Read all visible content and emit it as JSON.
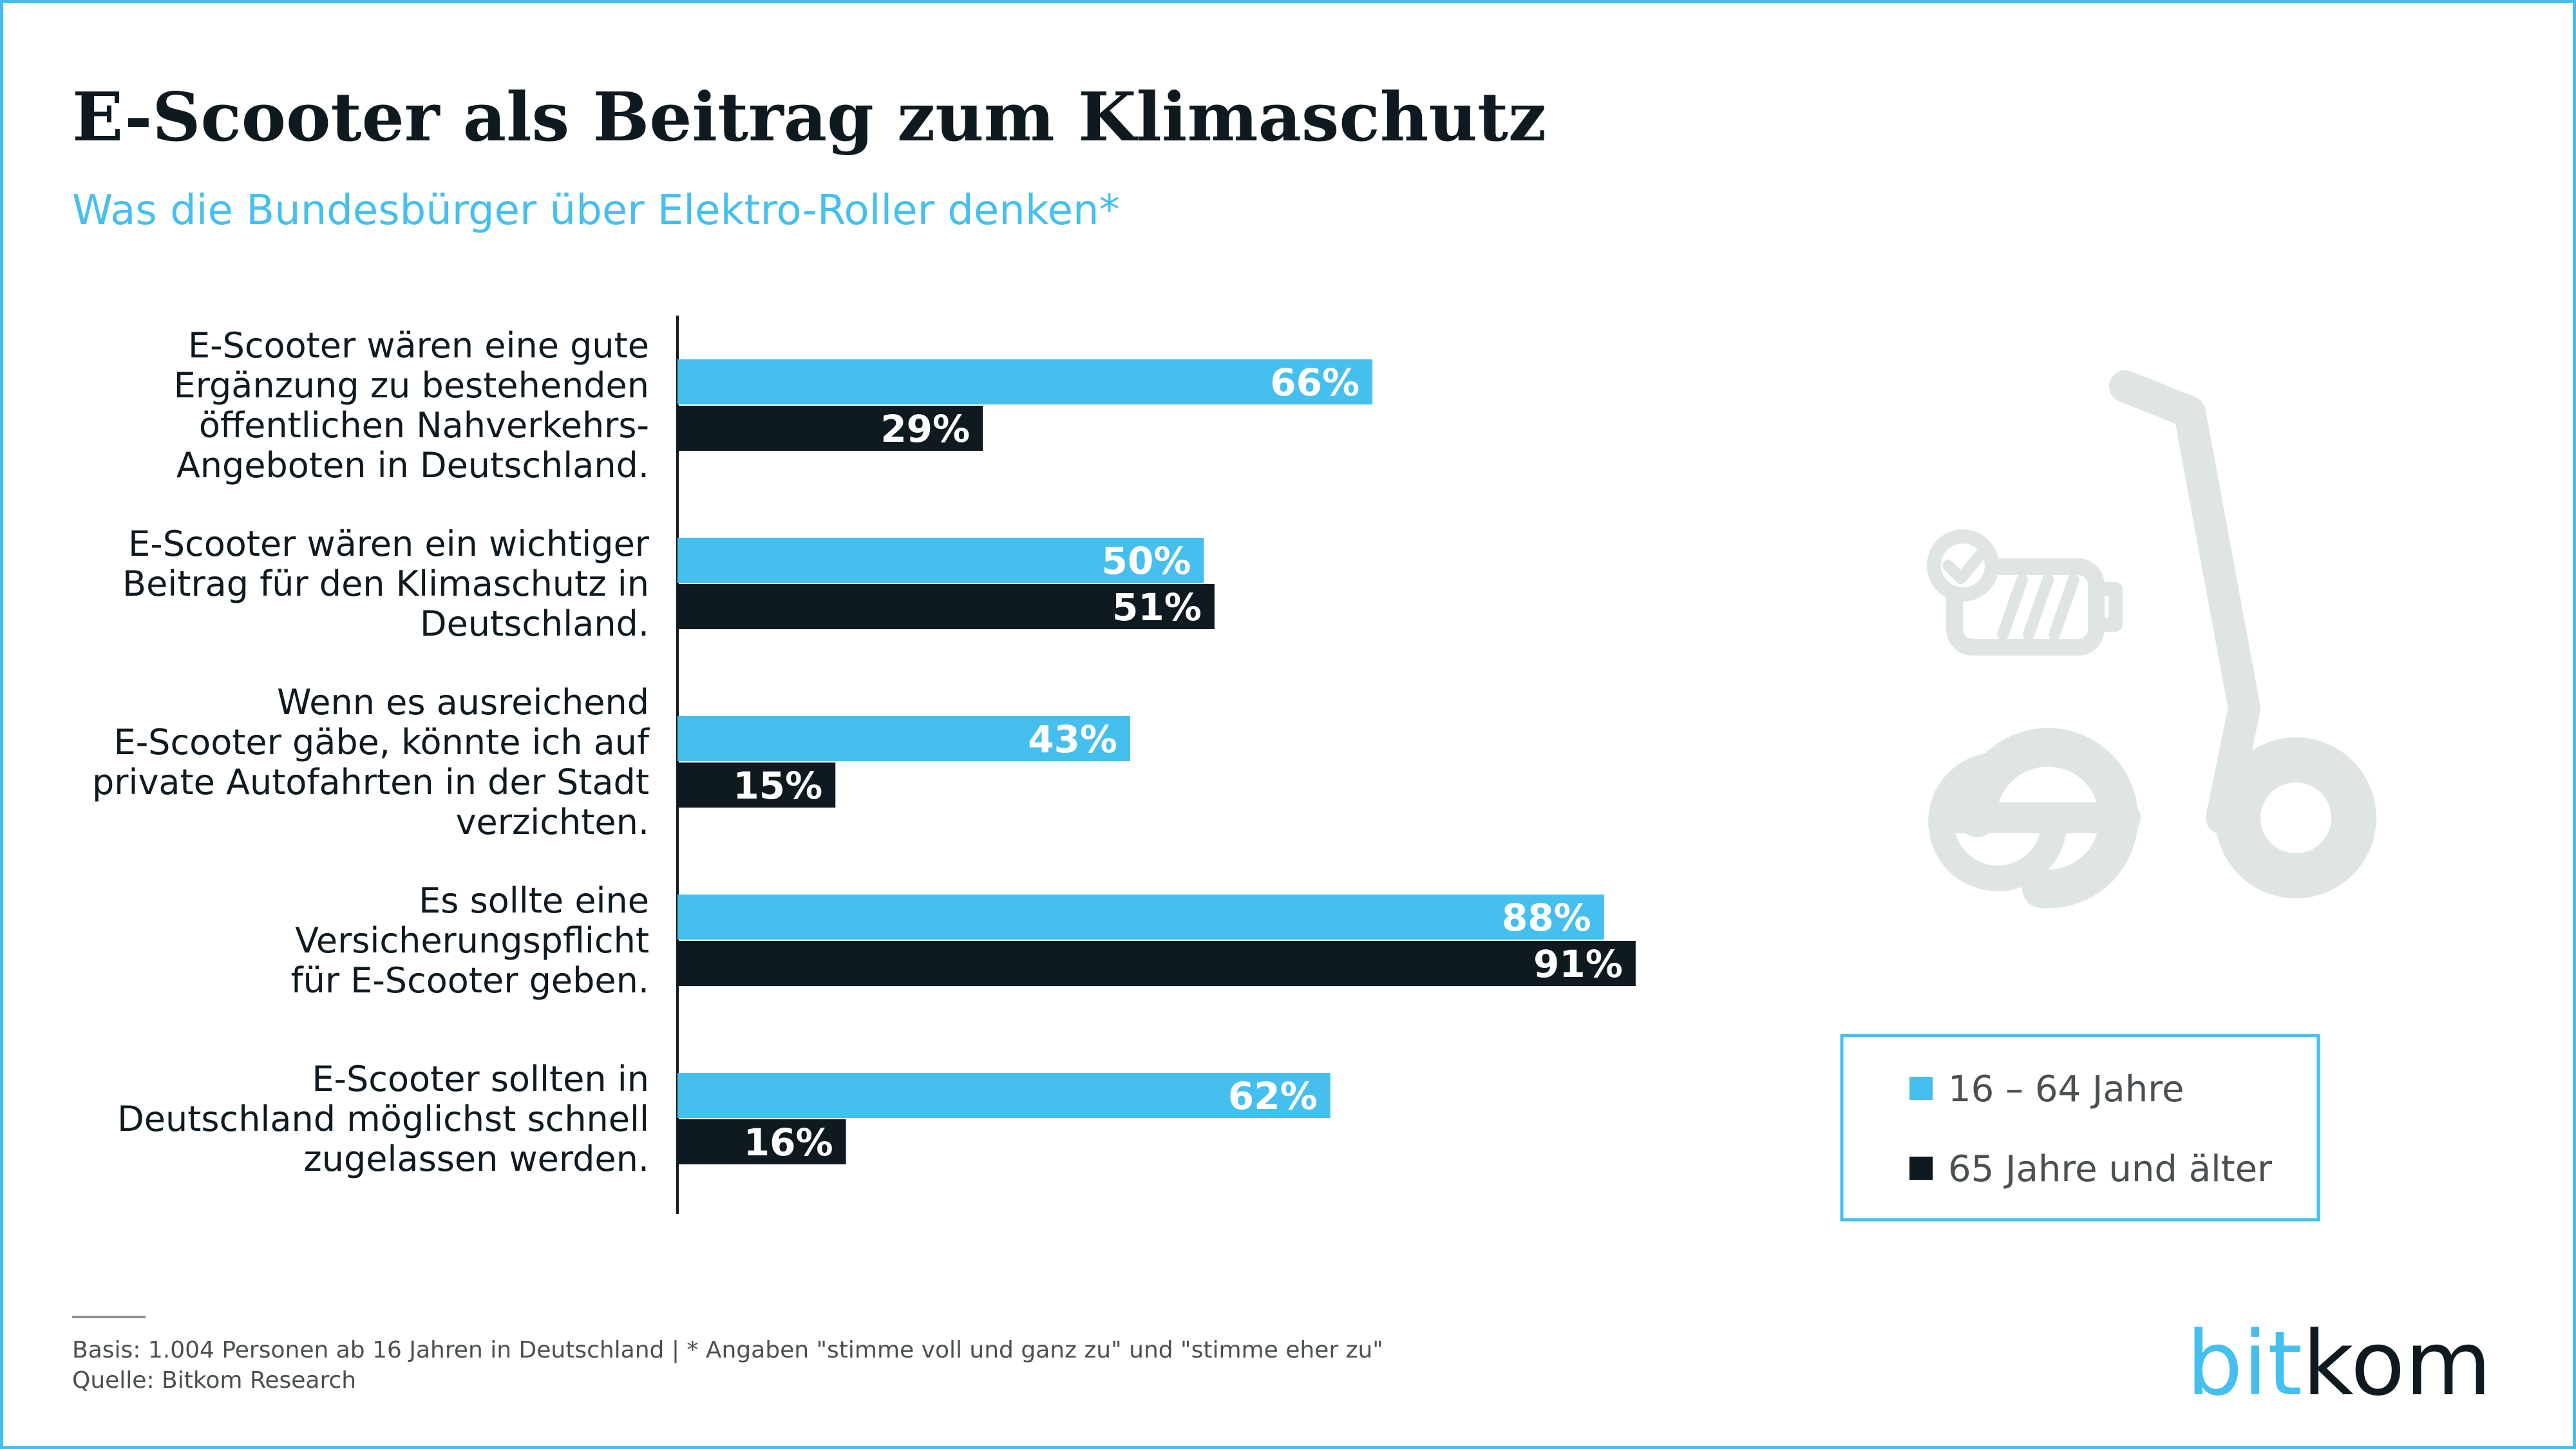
{
  "title": "E-Scooter als Beitrag zum Klimaschutz",
  "subtitle": "Was die Bundesbürger über Elektro-Roller denken*",
  "colors": {
    "series1": "#45c0ee",
    "series2": "#0e1a20",
    "axis": "#0e1a20",
    "frame": "#45c0ee",
    "illustration": "#dfe5e4"
  },
  "icons": {
    "illustration": "e-scooter-battery-icon"
  },
  "chart_data": {
    "type": "bar",
    "orientation": "horizontal",
    "categories": [
      [
        "E-Scooter wären eine gute",
        "Ergänzung zu bestehenden",
        "öffentlichen Nahverkehrs-",
        "Angeboten in Deutschland."
      ],
      [
        "E-Scooter wären ein wichtiger",
        "Beitrag für den Klimaschutz in",
        "Deutschland."
      ],
      [
        "Wenn es ausreichend",
        "E-Scooter gäbe, könnte ich auf",
        "private  Autofahrten in der Stadt",
        "verzichten."
      ],
      [
        "Es sollte eine",
        "Versicherungspflicht",
        "für E-Scooter geben."
      ],
      [
        "E-Scooter sollten in",
        "Deutschland möglichst schnell",
        "zugelassen werden."
      ]
    ],
    "series": [
      {
        "name": "16 – 64 Jahre",
        "values": [
          66,
          50,
          43,
          88,
          62
        ]
      },
      {
        "name": "65 Jahre und älter",
        "values": [
          29,
          51,
          15,
          91,
          16
        ]
      }
    ],
    "value_suffix": "%",
    "xlim": [
      0,
      100
    ],
    "grid": false,
    "legend_position": "bottom-right"
  },
  "footer": {
    "basis": "Basis: 1.004 Personen ab 16 Jahren in Deutschland | * Angaben \"stimme voll und ganz zu\" und \"stimme eher zu\"",
    "source": "Quelle: Bitkom Research"
  },
  "logo": {
    "part1": "bit",
    "part2": "kom"
  }
}
